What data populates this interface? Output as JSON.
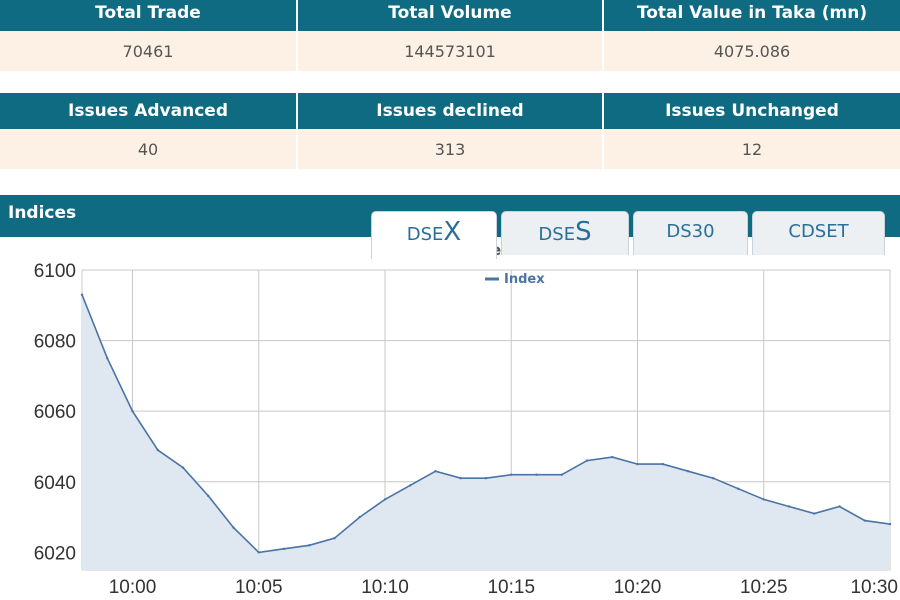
{
  "summary": {
    "headers": [
      "Total Trade",
      "Total Volume",
      "Total Value in Taka (mn)"
    ],
    "values": [
      "70461",
      "144573101",
      "4075.086"
    ]
  },
  "issues": {
    "headers": [
      "Issues Advanced",
      "Issues declined",
      "Issues Unchanged"
    ],
    "values": [
      "40",
      "313",
      "12"
    ]
  },
  "indices": {
    "title": "Indices",
    "tabs": [
      {
        "prefix": "DSE",
        "suffix": "X",
        "active": true
      },
      {
        "prefix": "DSE",
        "suffix": "S",
        "active": false
      },
      {
        "label": "DS30",
        "active": false
      },
      {
        "label": "CDSET",
        "active": false
      }
    ]
  },
  "colors": {
    "header_bg": "#0f6b82",
    "row_bg": "#fdf1e6",
    "line": "#4a73a6",
    "area_fill": "#dfe7f1"
  },
  "chart_data": {
    "type": "area",
    "title": "DSE Broad Index",
    "xlabel": "",
    "ylabel": "",
    "legend": {
      "position": "top-center",
      "entries": [
        "Index"
      ]
    },
    "grid": true,
    "ylim": [
      6015,
      6100
    ],
    "xlim": [
      "09:58",
      "10:30"
    ],
    "yticks": [
      6020,
      6040,
      6060,
      6080,
      6100
    ],
    "xticks": [
      "10:00",
      "10:05",
      "10:10",
      "10:15",
      "10:20",
      "10:25",
      "10:30"
    ],
    "series": [
      {
        "name": "Index",
        "x": [
          "09:58",
          "09:59",
          "10:00",
          "10:01",
          "10:02",
          "10:03",
          "10:04",
          "10:05",
          "10:06",
          "10:07",
          "10:08",
          "10:09",
          "10:10",
          "10:11",
          "10:12",
          "10:13",
          "10:14",
          "10:15",
          "10:16",
          "10:17",
          "10:18",
          "10:19",
          "10:20",
          "10:21",
          "10:22",
          "10:23",
          "10:24",
          "10:25",
          "10:26",
          "10:27",
          "10:28",
          "10:29",
          "10:30"
        ],
        "values": [
          6093,
          6075,
          6060,
          6049,
          6044,
          6036,
          6027,
          6020,
          6021,
          6022,
          6024,
          6030,
          6035,
          6039,
          6043,
          6041,
          6041,
          6042,
          6042,
          6042,
          6046,
          6047,
          6045,
          6045,
          6043,
          6041,
          6038,
          6035,
          6033,
          6031,
          6033,
          6029,
          6028
        ]
      }
    ]
  }
}
